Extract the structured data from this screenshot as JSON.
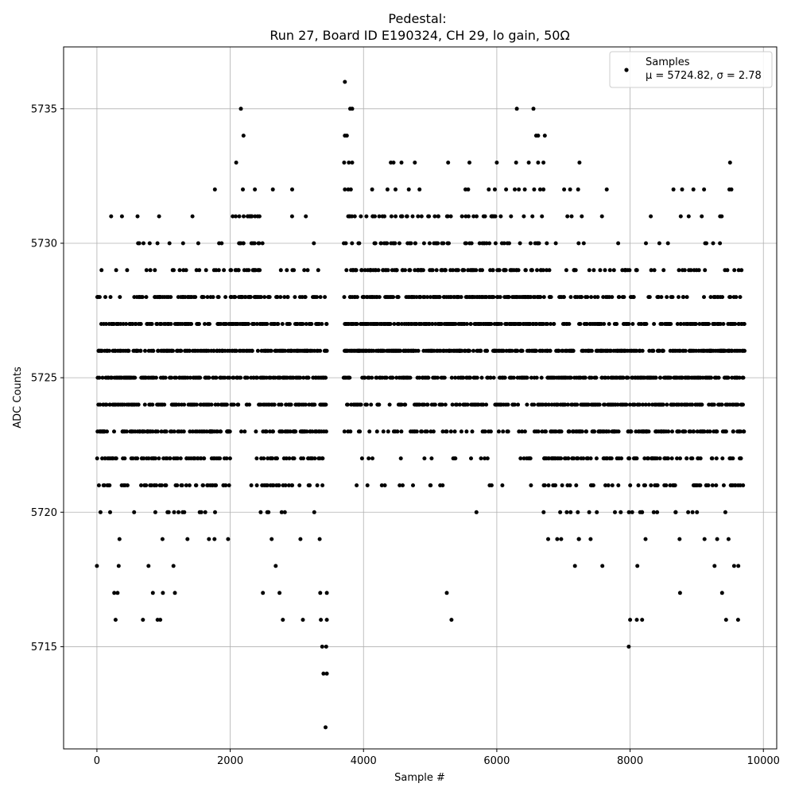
{
  "chart_data": {
    "type": "scatter",
    "title_line1": "Pedestal:",
    "title_line2": "Run 27, Board ID E190324, CH 29, lo gain, 50Ω",
    "xlabel": "Sample #",
    "ylabel": "ADC Counts",
    "xlim": [
      -500,
      10200
    ],
    "ylim": [
      5711.2,
      5737.3
    ],
    "xticks": [
      0,
      2000,
      4000,
      6000,
      8000,
      10000
    ],
    "yticks": [
      5715,
      5720,
      5725,
      5730,
      5735
    ],
    "grid": true,
    "marker_color": "#000000",
    "legend": {
      "placement": "top-right",
      "series_name": "Samples",
      "stats_label": "μ = 5724.82, σ = 2.78"
    },
    "stats": {
      "mean": 5724.82,
      "sigma": 2.78
    },
    "n_samples": 9720,
    "outliers": [
      {
        "x": 3720,
        "y": 5736
      },
      {
        "x": 3800,
        "y": 5735
      },
      {
        "x": 3830,
        "y": 5735
      },
      {
        "x": 2160,
        "y": 5735
      },
      {
        "x": 6300,
        "y": 5735
      },
      {
        "x": 6550,
        "y": 5735
      },
      {
        "x": 2200,
        "y": 5734
      },
      {
        "x": 3720,
        "y": 5734
      },
      {
        "x": 3750,
        "y": 5734
      },
      {
        "x": 6590,
        "y": 5734
      },
      {
        "x": 6620,
        "y": 5734
      },
      {
        "x": 6720,
        "y": 5734
      },
      {
        "x": 2090,
        "y": 5733
      },
      {
        "x": 3710,
        "y": 5733
      },
      {
        "x": 3780,
        "y": 5733
      },
      {
        "x": 3830,
        "y": 5733
      },
      {
        "x": 4410,
        "y": 5733
      },
      {
        "x": 4450,
        "y": 5733
      },
      {
        "x": 4570,
        "y": 5733
      },
      {
        "x": 4770,
        "y": 5733
      },
      {
        "x": 5270,
        "y": 5733
      },
      {
        "x": 5590,
        "y": 5733
      },
      {
        "x": 6000,
        "y": 5733
      },
      {
        "x": 6290,
        "y": 5733
      },
      {
        "x": 6480,
        "y": 5733
      },
      {
        "x": 6620,
        "y": 5733
      },
      {
        "x": 6700,
        "y": 5733
      },
      {
        "x": 7240,
        "y": 5733
      },
      {
        "x": 9500,
        "y": 5733
      },
      {
        "x": 1770,
        "y": 5732
      },
      {
        "x": 2190,
        "y": 5732
      },
      {
        "x": 2370,
        "y": 5732
      },
      {
        "x": 2640,
        "y": 5732
      },
      {
        "x": 2930,
        "y": 5732
      },
      {
        "x": 3720,
        "y": 5732
      },
      {
        "x": 3770,
        "y": 5732
      },
      {
        "x": 3810,
        "y": 5732
      },
      {
        "x": 4130,
        "y": 5732
      },
      {
        "x": 4360,
        "y": 5732
      },
      {
        "x": 4480,
        "y": 5732
      },
      {
        "x": 4680,
        "y": 5732
      },
      {
        "x": 4840,
        "y": 5732
      },
      {
        "x": 5530,
        "y": 5732
      },
      {
        "x": 5570,
        "y": 5732
      },
      {
        "x": 5880,
        "y": 5732
      },
      {
        "x": 5970,
        "y": 5732
      },
      {
        "x": 6140,
        "y": 5732
      },
      {
        "x": 6270,
        "y": 5732
      },
      {
        "x": 6330,
        "y": 5732
      },
      {
        "x": 6420,
        "y": 5732
      },
      {
        "x": 6560,
        "y": 5732
      },
      {
        "x": 6650,
        "y": 5732
      },
      {
        "x": 6700,
        "y": 5732
      },
      {
        "x": 7010,
        "y": 5732
      },
      {
        "x": 7100,
        "y": 5732
      },
      {
        "x": 7220,
        "y": 5732
      },
      {
        "x": 7650,
        "y": 5732
      },
      {
        "x": 8650,
        "y": 5732
      },
      {
        "x": 8780,
        "y": 5732
      },
      {
        "x": 8950,
        "y": 5732
      },
      {
        "x": 9110,
        "y": 5732
      },
      {
        "x": 9490,
        "y": 5732
      },
      {
        "x": 9520,
        "y": 5732
      },
      {
        "x": 3450,
        "y": 5717
      },
      {
        "x": 3350,
        "y": 5717
      },
      {
        "x": 2490,
        "y": 5717
      },
      {
        "x": 2740,
        "y": 5717
      },
      {
        "x": 1170,
        "y": 5717
      },
      {
        "x": 260,
        "y": 5717
      },
      {
        "x": 310,
        "y": 5717
      },
      {
        "x": 840,
        "y": 5717
      },
      {
        "x": 990,
        "y": 5717
      },
      {
        "x": 5250,
        "y": 5717
      },
      {
        "x": 8750,
        "y": 5717
      },
      {
        "x": 9380,
        "y": 5717
      },
      {
        "x": 280,
        "y": 5716
      },
      {
        "x": 690,
        "y": 5716
      },
      {
        "x": 910,
        "y": 5716
      },
      {
        "x": 950,
        "y": 5716
      },
      {
        "x": 2790,
        "y": 5716
      },
      {
        "x": 3090,
        "y": 5716
      },
      {
        "x": 3360,
        "y": 5716
      },
      {
        "x": 3450,
        "y": 5716
      },
      {
        "x": 5320,
        "y": 5716
      },
      {
        "x": 8000,
        "y": 5716
      },
      {
        "x": 8100,
        "y": 5716
      },
      {
        "x": 8180,
        "y": 5716
      },
      {
        "x": 9440,
        "y": 5716
      },
      {
        "x": 9620,
        "y": 5716
      },
      {
        "x": 3380,
        "y": 5715
      },
      {
        "x": 3440,
        "y": 5715
      },
      {
        "x": 7980,
        "y": 5715
      },
      {
        "x": 3400,
        "y": 5714
      },
      {
        "x": 3450,
        "y": 5714
      },
      {
        "x": 3430,
        "y": 5712
      }
    ]
  }
}
